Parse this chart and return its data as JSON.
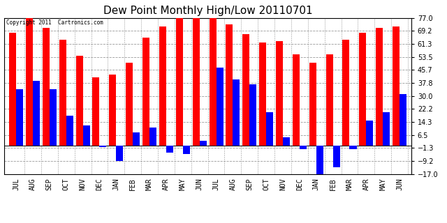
{
  "title": "Dew Point Monthly High/Low 20110701",
  "copyright": "Copyright 2011  Cartronics.com",
  "months": [
    "JUL",
    "AUG",
    "SEP",
    "OCT",
    "NOV",
    "DEC",
    "JAN",
    "FEB",
    "MAR",
    "APR",
    "MAY",
    "JUN",
    "JUL",
    "AUG",
    "SEP",
    "OCT",
    "NOV",
    "DEC",
    "JAN",
    "FEB",
    "MAR",
    "APR",
    "MAY",
    "JUN"
  ],
  "highs": [
    68,
    77,
    71,
    64,
    54,
    41,
    43,
    50,
    65,
    72,
    77,
    77,
    77,
    73,
    67,
    62,
    63,
    55,
    50,
    55,
    64,
    68,
    71,
    72
  ],
  "lows": [
    34,
    39,
    34,
    18,
    12,
    -1,
    -9,
    8,
    11,
    -4,
    -5,
    3,
    47,
    40,
    37,
    20,
    5,
    -2,
    -17,
    -13,
    -2,
    15,
    20,
    31
  ],
  "ylim": [
    -17,
    77
  ],
  "yticks": [
    -17.0,
    -9.2,
    -1.3,
    6.5,
    14.3,
    22.2,
    30.0,
    37.8,
    45.7,
    53.5,
    61.3,
    69.2,
    77.0
  ],
  "bar_color_high": "#ff0000",
  "bar_color_low": "#0000ff",
  "bg_color": "#ffffff",
  "grid_color": "#999999",
  "title_fontsize": 11,
  "tick_fontsize": 7
}
